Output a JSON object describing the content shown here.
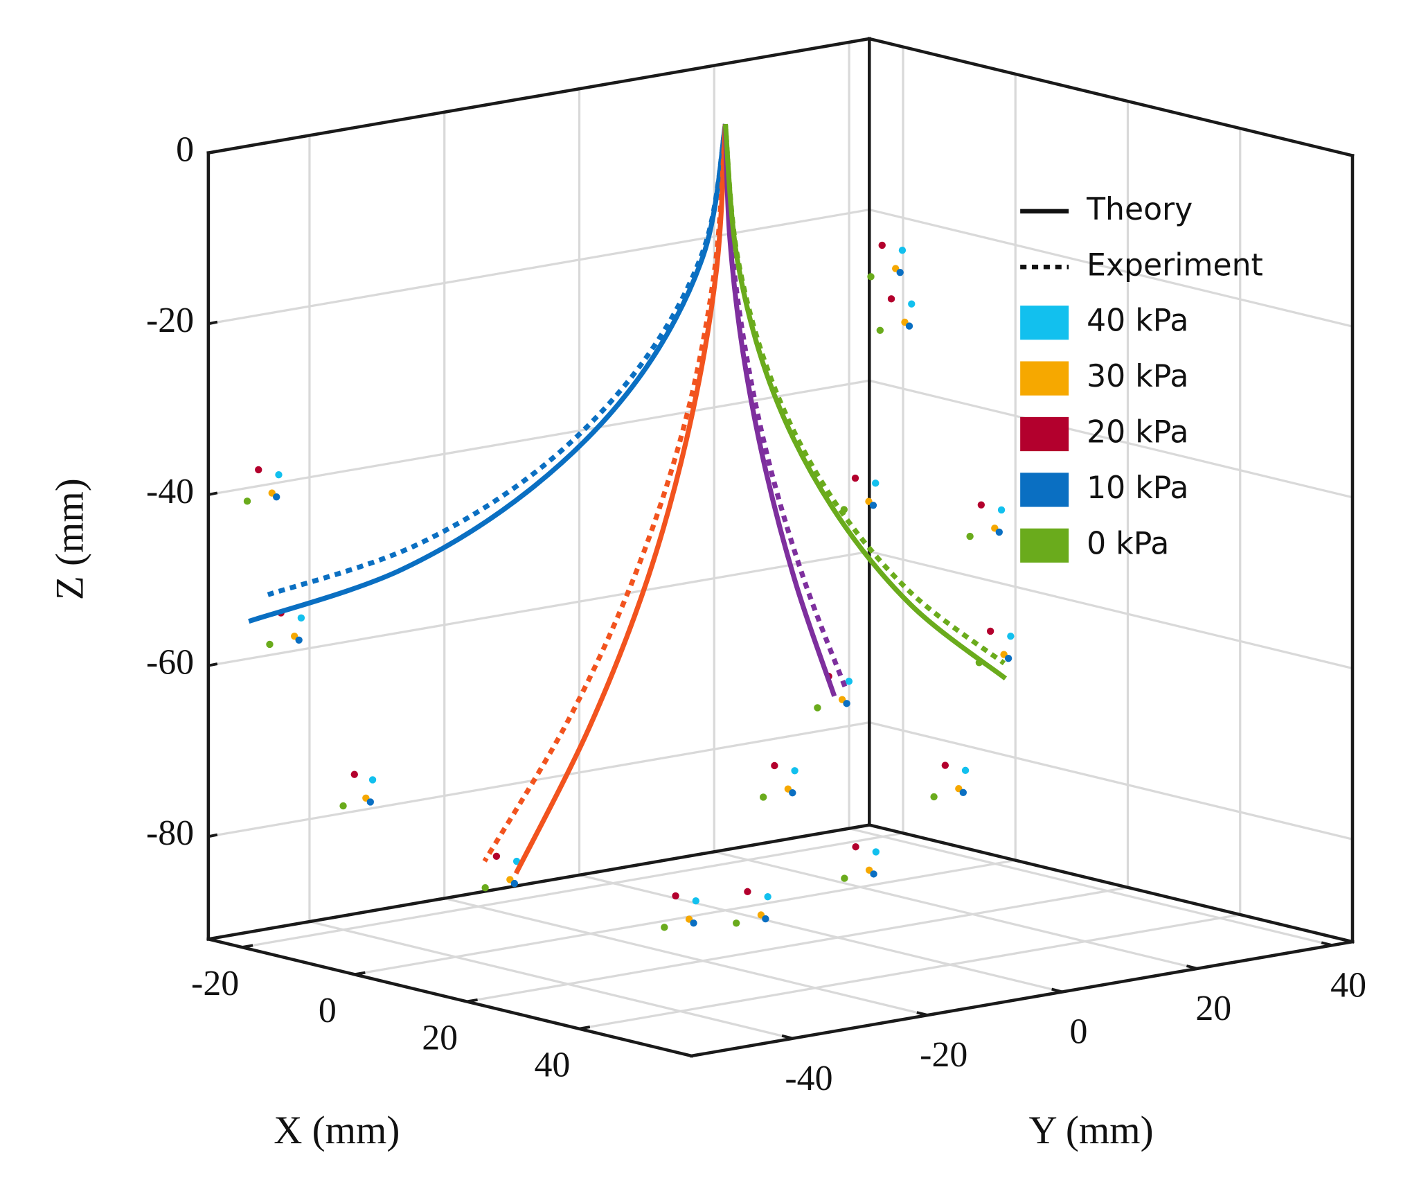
{
  "chart_data": {
    "type": "scatter3d",
    "xlabel": "X (mm)",
    "ylabel": "Y (mm)",
    "zlabel": "Z (mm)",
    "xlim": [
      -26,
      60
    ],
    "ylim": [
      -55,
      43
    ],
    "zlim": [
      -92,
      0
    ],
    "xticks": [
      -20,
      0,
      20,
      40
    ],
    "yticks": [
      -40,
      -20,
      0,
      20,
      40
    ],
    "zticks": [
      0,
      -20,
      -40,
      -60,
      -80
    ],
    "grid": true,
    "legend": {
      "position": "upper right",
      "line_styles": [
        {
          "label": "Theory",
          "dash": "solid"
        },
        {
          "label": "Experiment",
          "dash": "dotted"
        }
      ]
    },
    "curves": [
      {
        "style": "solid",
        "color": "#0a6fc2",
        "x": [
          0,
          -0.9,
          -3.7,
          -8.0,
          -13.6,
          -20
        ],
        "y": [
          0,
          -2.5,
          -9.9,
          -21.7,
          -36.7,
          -54
        ],
        "z": [
          0,
          -15.1,
          -29.1,
          -40.7,
          -49.3,
          -54
        ]
      },
      {
        "style": "dotted",
        "color": "#0a6fc2",
        "x": [
          0,
          -0.9,
          -3.5,
          -7.6,
          -12.9,
          -19
        ],
        "y": [
          0,
          -2.4,
          -9.6,
          -20.9,
          -35.4,
          -52
        ],
        "z": [
          0,
          -14.3,
          -27.4,
          -38.5,
          -46.6,
          -51
        ]
      },
      {
        "style": "solid",
        "color": "#f2531e",
        "x": [
          0,
          0.9,
          3.3,
          7.4,
          13,
          20
        ],
        "y": [
          0,
          -2.1,
          -8,
          -17.6,
          -31,
          -47.7
        ],
        "z": [
          0,
          -16.8,
          -33.5,
          -49.4,
          -64.3,
          -78
        ]
      },
      {
        "style": "dotted",
        "color": "#f2531e",
        "x": [
          0,
          0.6,
          2.5,
          5.5,
          9.8,
          15
        ],
        "y": [
          0,
          -2.1,
          -8,
          -17.7,
          -31.3,
          -48.2
        ],
        "z": [
          0,
          -16.7,
          -33.2,
          -48.9,
          -63.7,
          -77.3
        ]
      },
      {
        "style": "solid",
        "color": "#7e2f9e",
        "x": [
          0,
          1.5,
          5.8,
          12.9,
          22.8,
          35
        ],
        "y": [
          0,
          -0.6,
          -2.2,
          -4.8,
          -8.5,
          -13
        ],
        "z": [
          0,
          -12.9,
          -25.6,
          -37.7,
          -49.1,
          -59.6
        ]
      },
      {
        "style": "dotted",
        "color": "#7e2f9e",
        "x": [
          0,
          1.5,
          6,
          13.2,
          23.4,
          36
        ],
        "y": [
          0,
          -0.5,
          -2,
          -4.4,
          -7.8,
          -12
        ],
        "z": [
          0,
          -12.7,
          -25.3,
          -37.3,
          -48.6,
          -59
        ]
      },
      {
        "style": "solid",
        "color": "#6aab1c",
        "x": [
          0,
          0.4,
          1.7,
          3.8,
          6.6,
          10
        ],
        "y": [
          0,
          1.5,
          5.7,
          12.7,
          22,
          33.2
        ],
        "z": [
          0,
          -16.3,
          -31.9,
          -46,
          -58.2,
          -67.8
        ]
      },
      {
        "style": "dotted",
        "color": "#6aab1c",
        "x": [
          0,
          0.4,
          1.7,
          3.8,
          6.6,
          10
        ],
        "y": [
          0,
          1.5,
          5.7,
          12.6,
          21.8,
          33
        ],
        "z": [
          0,
          -15.8,
          -31,
          -44.8,
          -56.6,
          -66
        ]
      }
    ],
    "series": [
      {
        "name": "40 kPa",
        "color": "#12c0ee",
        "x": [
          -22,
          -15,
          0,
          20,
          40,
          45,
          40,
          20,
          0,
          -5,
          10,
          15,
          30,
          40,
          45
        ],
        "y": [
          -47.9,
          -50.4,
          -52.3,
          -47.6,
          -37.7,
          -27.2,
          -15.0,
          5.6,
          27.6,
          30.4,
          32.6,
          29.8,
          10.6,
          -11.0,
          -31.2
        ],
        "z": [
          -38.0,
          -53.3,
          -69.6,
          -76.6,
          -79.4,
          -64.8,
          -56.8,
          -39.6,
          -24.8,
          -19.7,
          -48.0,
          -61.6,
          -72.3,
          -77.3,
          -79.0
        ]
      },
      {
        "name": "30 kPa",
        "color": "#f6a800",
        "x": [
          -22,
          -15,
          0,
          20,
          40,
          45,
          40,
          20,
          0,
          -5,
          10,
          15,
          30,
          40,
          45
        ],
        "y": [
          -48.9,
          -51.4,
          -53.3,
          -48.6,
          -38.7,
          -28.2,
          -16.0,
          4.6,
          26.6,
          29.4,
          31.6,
          28.8,
          9.6,
          -12.0,
          -32.2
        ],
        "z": [
          -40.0,
          -55.3,
          -71.6,
          -78.6,
          -81.4,
          -66.8,
          -58.8,
          -41.6,
          -26.8,
          -21.7,
          -50.0,
          -63.6,
          -74.3,
          -79.3,
          -81.0
        ]
      },
      {
        "name": "20 kPa",
        "color": "#b3002d",
        "x": [
          -22,
          -15,
          0,
          20,
          40,
          45,
          40,
          20,
          0,
          -5,
          10,
          15,
          30,
          40,
          45
        ],
        "y": [
          -50.9,
          -53.4,
          -55.0,
          -50.6,
          -40.7,
          -30.2,
          -18.0,
          2.6,
          24.6,
          27.4,
          29.6,
          26.8,
          7.6,
          -14.0,
          -34.2
        ],
        "z": [
          -37.0,
          -52.3,
          -68.6,
          -75.6,
          -78.4,
          -63.8,
          -55.8,
          -38.6,
          -23.8,
          -18.7,
          -47.0,
          -60.6,
          -71.3,
          -76.3,
          -78.0
        ]
      },
      {
        "name": "10 kPa",
        "color": "#0a6fc2",
        "x": [
          -20,
          -13,
          2,
          22,
          42,
          47,
          42,
          22,
          2,
          -3,
          12,
          17,
          32,
          42,
          47
        ],
        "y": [
          -49.9,
          -52.4,
          -54.3,
          -49.6,
          -39.7,
          -29.2,
          -17.0,
          3.6,
          25.6,
          28.4,
          30.6,
          27.8,
          8.6,
          -13.0,
          -33.2
        ],
        "z": [
          -40.0,
          -55.3,
          -71.6,
          -78.6,
          -81.4,
          -66.8,
          -58.8,
          -41.6,
          -26.8,
          -21.7,
          -50.0,
          -63.6,
          -74.3,
          -79.3,
          -81.0
        ]
      },
      {
        "name": "0 kPa",
        "color": "#6aab1c",
        "x": [
          -24,
          -17,
          -2,
          18,
          38,
          43,
          38,
          18,
          -2,
          -7,
          8,
          13,
          28,
          38,
          43
        ],
        "y": [
          -50.9,
          -53.4,
          -55.0,
          -50.6,
          -40.7,
          -30.2,
          -18.0,
          2.6,
          24.6,
          27.4,
          29.6,
          26.8,
          7.6,
          -14.0,
          -34.2
        ],
        "z": [
          -41.0,
          -56.3,
          -72.6,
          -79.6,
          -82.4,
          -67.8,
          -59.8,
          -42.6,
          -27.8,
          -22.7,
          -51.0,
          -64.6,
          -75.3,
          -80.3,
          -82.0
        ]
      }
    ]
  }
}
